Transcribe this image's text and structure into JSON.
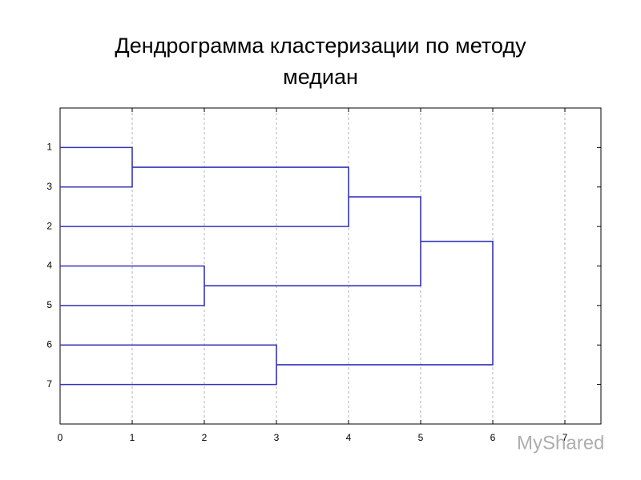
{
  "chart_data": {
    "type": "dendrogram",
    "title": "Дендрограмма кластеризации по методу медиан",
    "leaves": [
      "1",
      "3",
      "2",
      "4",
      "5",
      "6",
      "7"
    ],
    "merges": [
      {
        "left": 0,
        "right": 1,
        "height": 1
      },
      {
        "left": 3,
        "right": 4,
        "height": 2
      },
      {
        "left": 5,
        "right": 6,
        "height": 3
      },
      {
        "left": 7,
        "right": 2,
        "height": 4
      },
      {
        "left": 10,
        "right": 8,
        "height": 5
      },
      {
        "left": 11,
        "right": 9,
        "height": 6
      }
    ],
    "xlim": [
      0,
      7.5
    ],
    "xticks": [
      0,
      1,
      2,
      3,
      4,
      5,
      6,
      7
    ],
    "grid": true,
    "color": "#3434b8",
    "watermark": "MyShared"
  }
}
